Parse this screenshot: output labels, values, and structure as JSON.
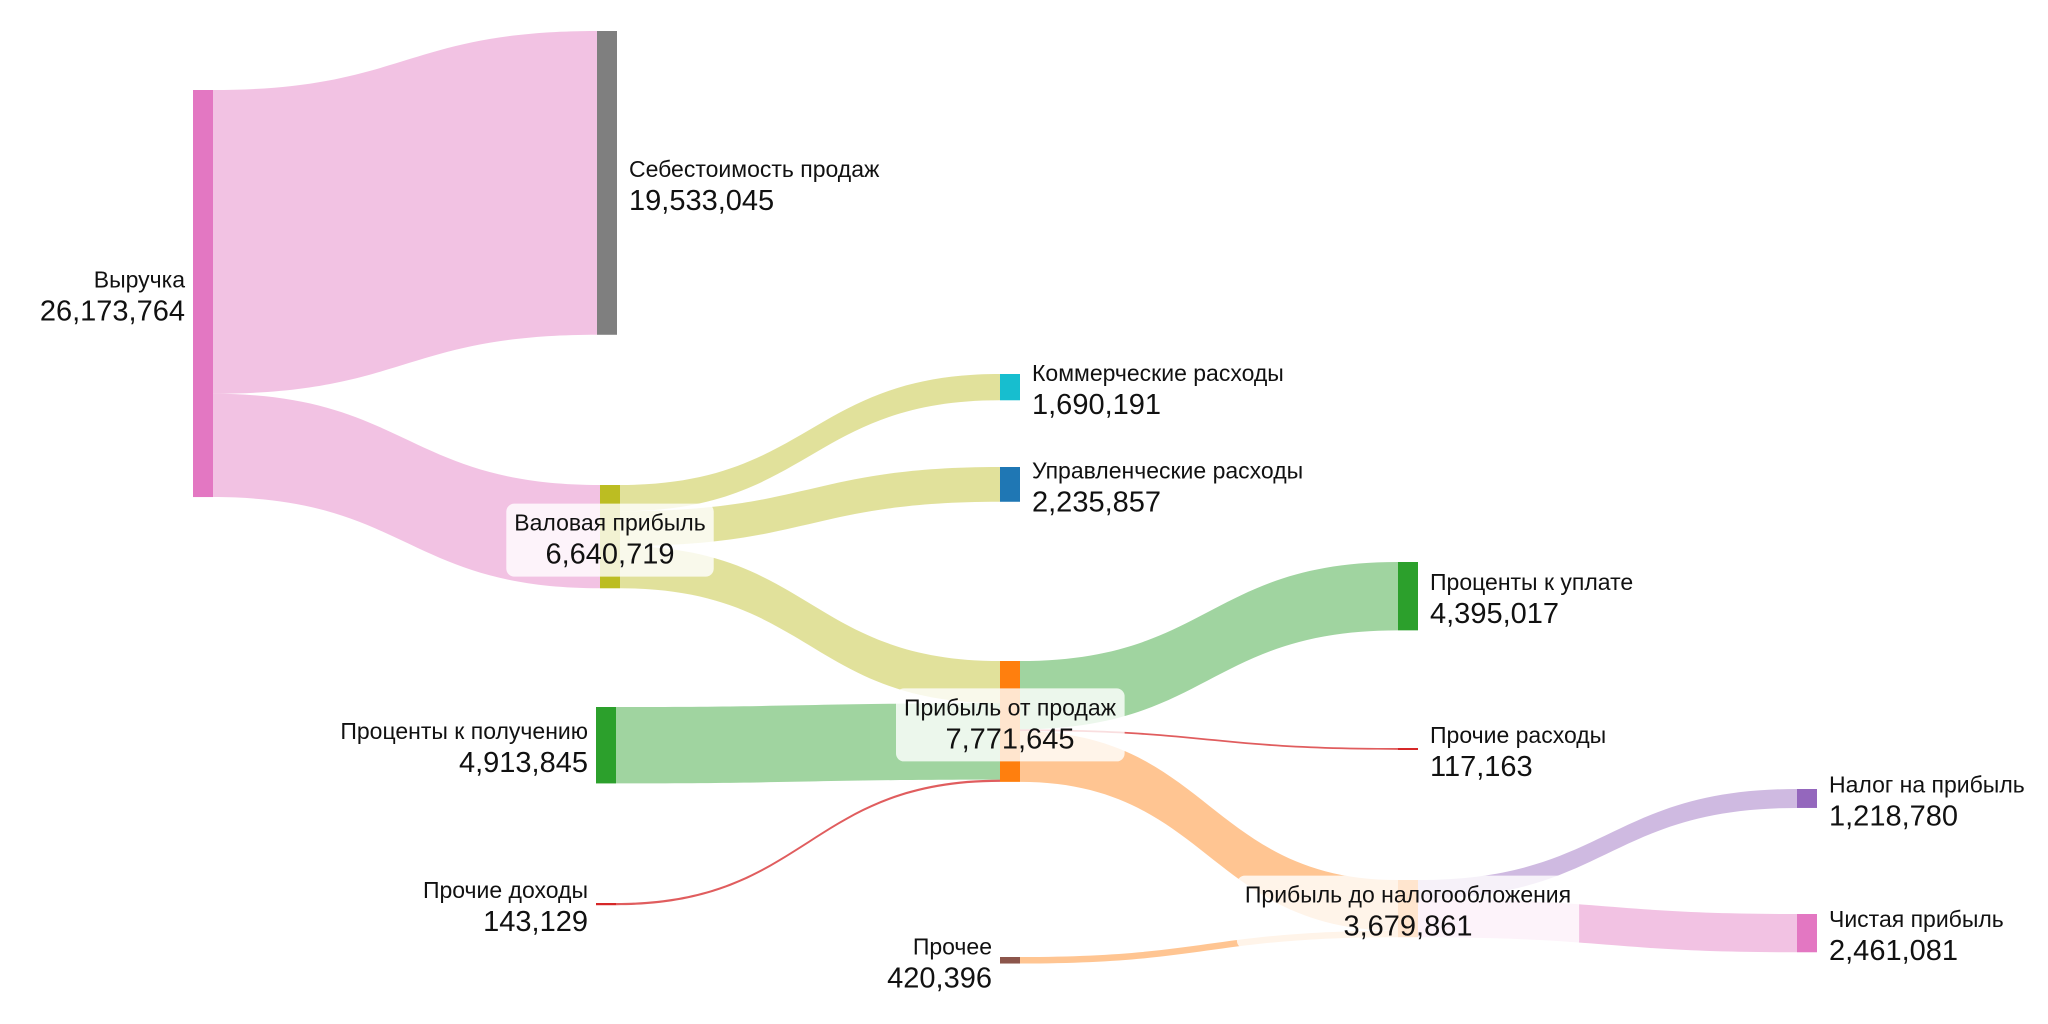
{
  "chart_data": {
    "type": "sankey",
    "nodes": [
      {
        "id": "revenue",
        "name": "Выручка",
        "value": "26,173,764",
        "color": "#e377c2",
        "label_side": "left"
      },
      {
        "id": "cogs",
        "name": "Себестоимость продаж",
        "value": "19,533,045",
        "color": "#7f7f7f",
        "label_side": "right"
      },
      {
        "id": "gross",
        "name": "Валовая прибыль",
        "value": "6,640,719",
        "color": "#bcbd22",
        "label_side": "center"
      },
      {
        "id": "commercial",
        "name": "Коммерческие расходы",
        "value": "1,690,191",
        "color": "#17becf",
        "label_side": "right"
      },
      {
        "id": "admin",
        "name": "Управленческие расходы",
        "value": "2,235,857",
        "color": "#1f77b4",
        "label_side": "right"
      },
      {
        "id": "int_recv",
        "name": "Проценты к получению",
        "value": "4,913,845",
        "color": "#2ca02c",
        "label_side": "left"
      },
      {
        "id": "op_profit",
        "name": "Прибыль от продаж",
        "value": "7,771,645",
        "color": "#ff7f0e",
        "label_side": "center"
      },
      {
        "id": "int_pay",
        "name": "Проценты к уплате",
        "value": "4,395,017",
        "color": "#2ca02c",
        "label_side": "right"
      },
      {
        "id": "other_exp",
        "name": "Прочие расходы",
        "value": "117,163",
        "color": "#d62728",
        "label_side": "right"
      },
      {
        "id": "other_inc",
        "name": "Прочие доходы",
        "value": "143,129",
        "color": "#d62728",
        "label_side": "left"
      },
      {
        "id": "misc",
        "name": "Прочее",
        "value": "420,396",
        "color": "#8c564b",
        "label_side": "left"
      },
      {
        "id": "pretax",
        "name": "Прибыль до налогообложения",
        "value": "3,679,861",
        "color": "#ff7f0e",
        "label_side": "center"
      },
      {
        "id": "tax",
        "name": "Налог на прибыль",
        "value": "1,218,780",
        "color": "#9467bd",
        "label_side": "right"
      },
      {
        "id": "net",
        "name": "Чистая прибыль",
        "value": "2,461,081",
        "color": "#e377c2",
        "label_side": "right"
      }
    ],
    "links": [
      {
        "source": "revenue",
        "target": "cogs",
        "value": 19533045,
        "color": "#e377c2"
      },
      {
        "source": "revenue",
        "target": "gross",
        "value": 6640719,
        "color": "#e377c2"
      },
      {
        "source": "gross",
        "target": "commercial",
        "value": 1690191,
        "color": "#bcbd22"
      },
      {
        "source": "gross",
        "target": "admin",
        "value": 2235857,
        "color": "#bcbd22"
      },
      {
        "source": "gross",
        "target": "op_profit",
        "value": 2714671,
        "color": "#bcbd22"
      },
      {
        "source": "int_recv",
        "target": "op_profit",
        "value": 4913845,
        "color": "#2ca02c"
      },
      {
        "source": "other_inc",
        "target": "op_profit",
        "value": 143129,
        "color": "#d62728"
      },
      {
        "source": "op_profit",
        "target": "int_pay",
        "value": 4395017,
        "color": "#2ca02c"
      },
      {
        "source": "op_profit",
        "target": "other_exp",
        "value": 117163,
        "color": "#d62728"
      },
      {
        "source": "op_profit",
        "target": "pretax",
        "value": 3259465,
        "color": "#ff7f0e"
      },
      {
        "source": "misc",
        "target": "pretax",
        "value": 420396,
        "color": "#ff7f0e"
      },
      {
        "source": "pretax",
        "target": "tax",
        "value": 1218780,
        "color": "#9467bd"
      },
      {
        "source": "pretax",
        "target": "net",
        "value": 2461081,
        "color": "#e377c2"
      }
    ]
  }
}
